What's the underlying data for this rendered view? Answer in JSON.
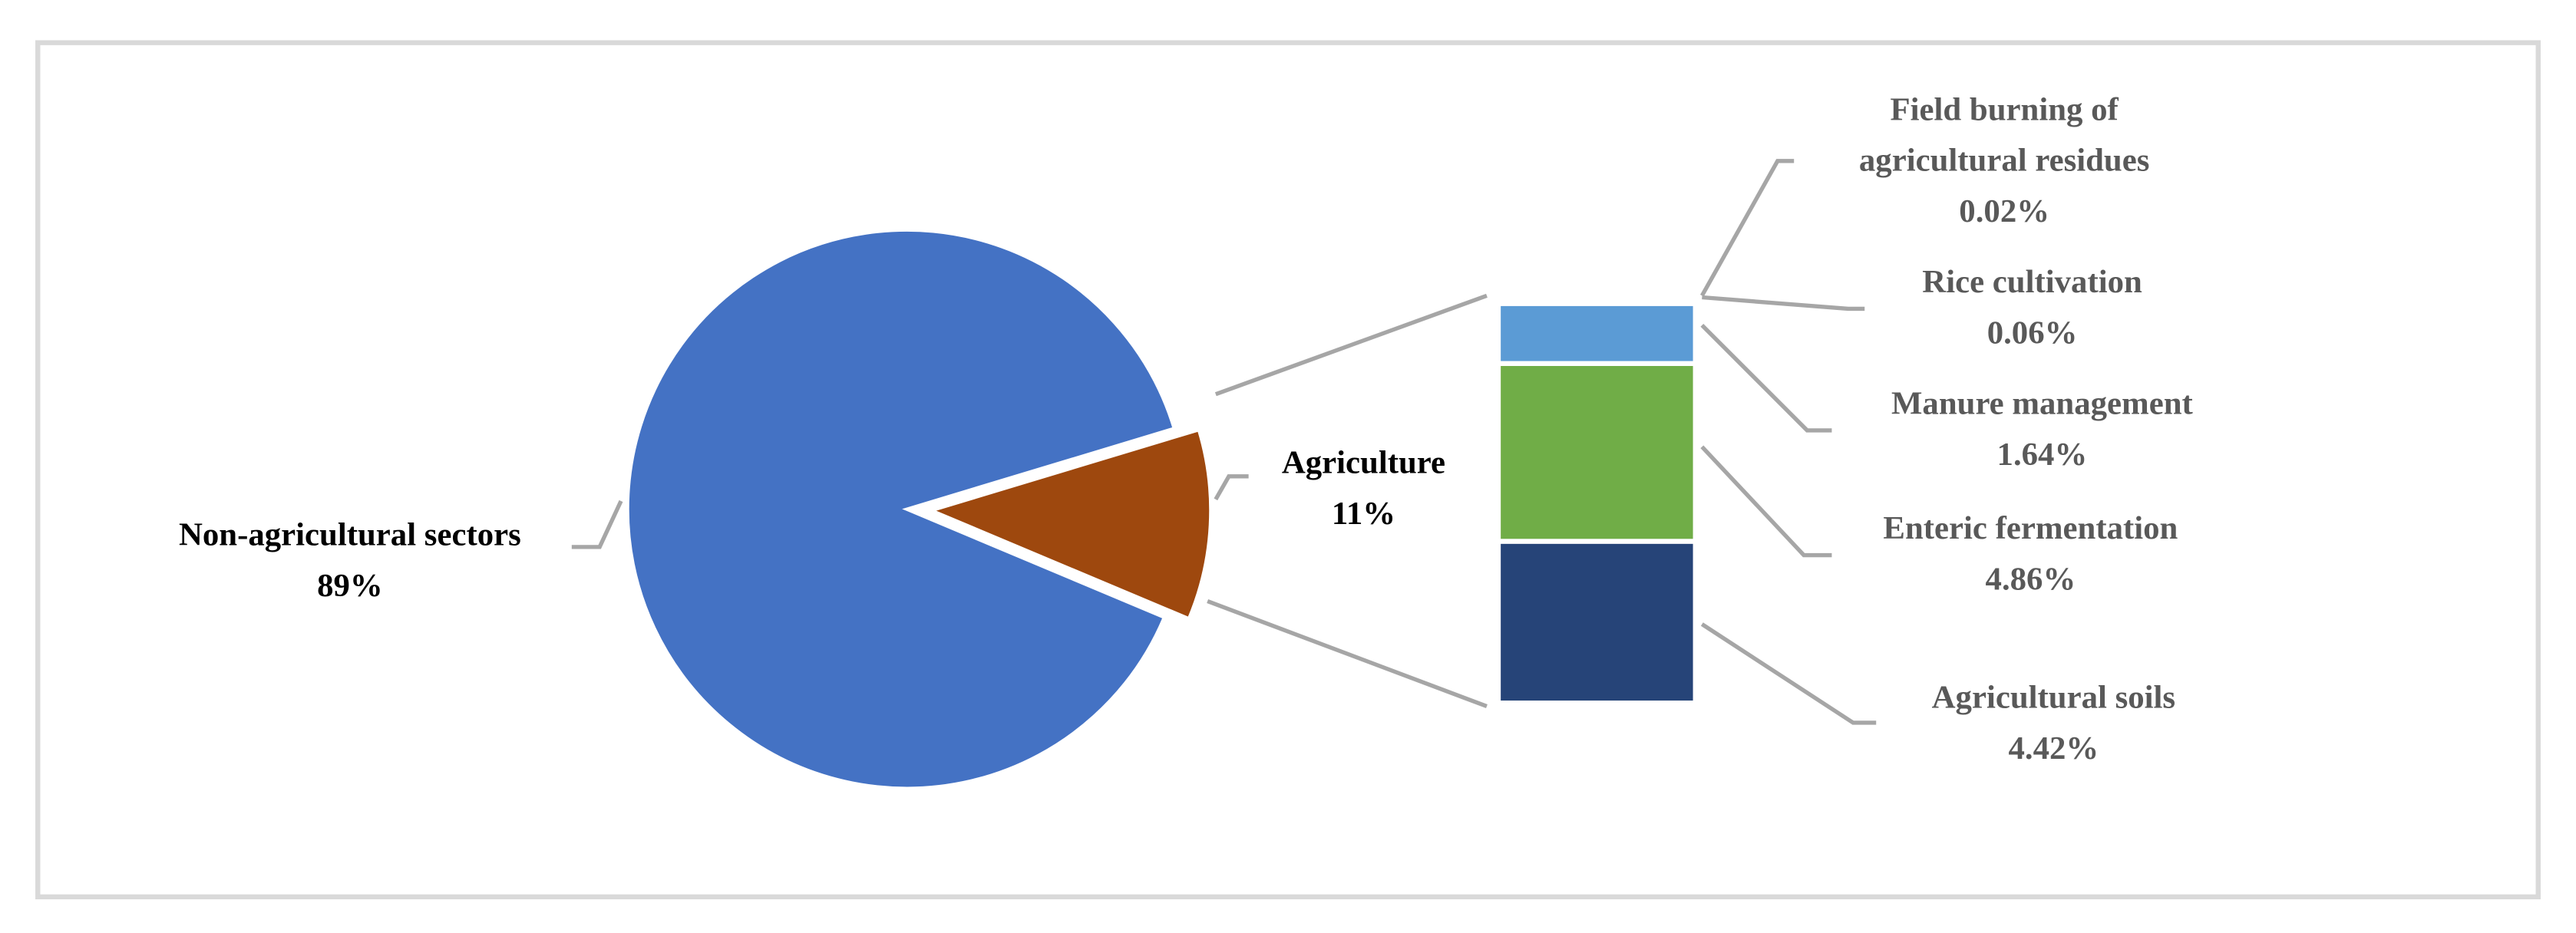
{
  "chart_data": [
    {
      "type": "pie",
      "categories": [
        "Non-agricultural sectors",
        "Agriculture"
      ],
      "values": [
        89,
        11
      ],
      "value_labels": [
        "89%",
        "11%"
      ],
      "colors": [
        "#4472c4",
        "#9e480e"
      ]
    },
    {
      "type": "bar",
      "categories": [
        "Field burning of agricultural residues",
        "Rice cultivation",
        "Manure management",
        "Enteric fermentation",
        "Agricultural soils"
      ],
      "values": [
        0.02,
        0.06,
        1.64,
        4.86,
        4.42
      ],
      "value_labels": [
        "0.02%",
        "0.06%",
        "1.64%",
        "4.86%",
        "4.42%"
      ],
      "colors": [
        "#ed7d31",
        "#a5a5a5",
        "#5b9bd5",
        "#70ad47",
        "#264478"
      ]
    }
  ]
}
